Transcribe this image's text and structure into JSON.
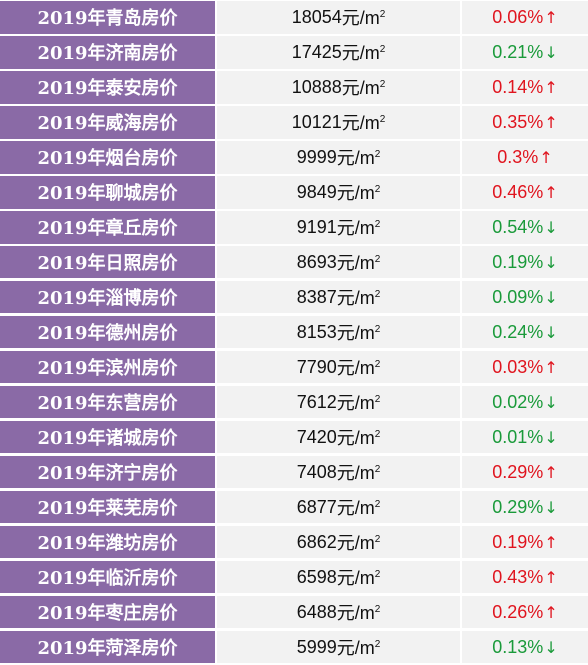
{
  "unit": {
    "prefix": "元/m",
    "exponent": "2"
  },
  "arrows": {
    "up": "↑",
    "down": "↓"
  },
  "colors": {
    "city_bg": "#8a6aa6",
    "cell_bg": "#f2f2f2",
    "up": "#e0141e",
    "down": "#1a9a3a"
  },
  "rows": [
    {
      "city": "2019年青岛房价",
      "price": "18054",
      "change": "0.06%",
      "direction": "up"
    },
    {
      "city": "2019年济南房价",
      "price": "17425",
      "change": "0.21%",
      "direction": "down"
    },
    {
      "city": "2019年泰安房价",
      "price": "10888",
      "change": "0.14%",
      "direction": "up"
    },
    {
      "city": "2019年威海房价",
      "price": "10121",
      "change": "0.35%",
      "direction": "up"
    },
    {
      "city": "2019年烟台房价",
      "price": "9999",
      "change": "0.3%",
      "direction": "up"
    },
    {
      "city": "2019年聊城房价",
      "price": "9849",
      "change": "0.46%",
      "direction": "up"
    },
    {
      "city": "2019年章丘房价",
      "price": "9191",
      "change": "0.54%",
      "direction": "down"
    },
    {
      "city": "2019年日照房价",
      "price": "8693",
      "change": "0.19%",
      "direction": "down"
    },
    {
      "city": "2019年淄博房价",
      "price": "8387",
      "change": "0.09%",
      "direction": "down"
    },
    {
      "city": "2019年德州房价",
      "price": "8153",
      "change": "0.24%",
      "direction": "down"
    },
    {
      "city": "2019年滨州房价",
      "price": "7790",
      "change": "0.03%",
      "direction": "up"
    },
    {
      "city": "2019年东营房价",
      "price": "7612",
      "change": "0.02%",
      "direction": "down"
    },
    {
      "city": "2019年诸城房价",
      "price": "7420",
      "change": "0.01%",
      "direction": "down"
    },
    {
      "city": "2019年济宁房价",
      "price": "7408",
      "change": "0.29%",
      "direction": "up"
    },
    {
      "city": "2019年莱芜房价",
      "price": "6877",
      "change": "0.29%",
      "direction": "down"
    },
    {
      "city": "2019年潍坊房价",
      "price": "6862",
      "change": "0.19%",
      "direction": "up"
    },
    {
      "city": "2019年临沂房价",
      "price": "6598",
      "change": "0.43%",
      "direction": "up"
    },
    {
      "city": "2019年枣庄房价",
      "price": "6488",
      "change": "0.26%",
      "direction": "up"
    },
    {
      "city": "2019年菏泽房价",
      "price": "5999",
      "change": "0.13%",
      "direction": "down"
    }
  ]
}
